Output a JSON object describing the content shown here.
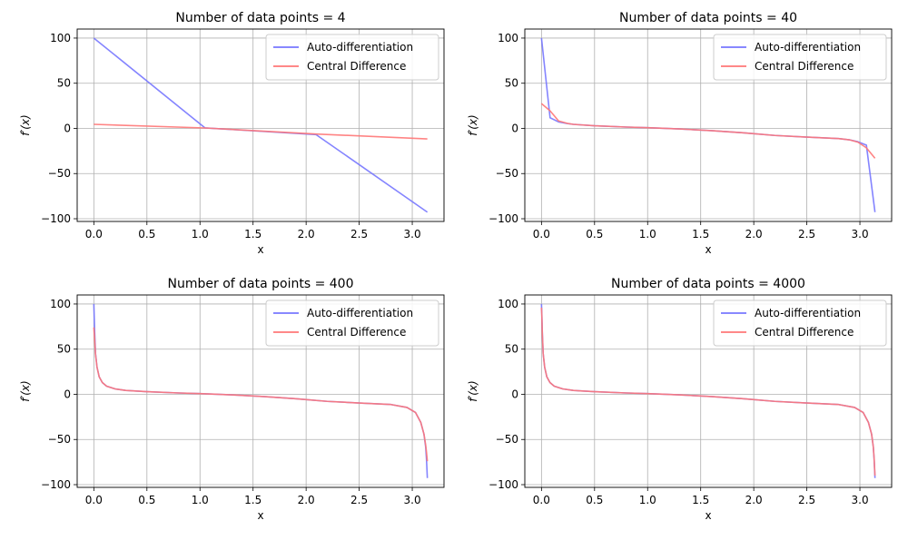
{
  "figure": {
    "layout": "2x2 grid"
  },
  "colors": {
    "auto": "#7777ff",
    "central": "#ff7777",
    "overlap": "#bb3f8f",
    "grid": "#b0b0b0"
  },
  "chart_data": [
    {
      "type": "line",
      "title": "Number of data points = 4",
      "xlabel": "x",
      "ylabel": "f′(x)",
      "xlim": [
        -0.157,
        3.299
      ],
      "ylim": [
        -103,
        110
      ],
      "xticks": [
        0.0,
        0.5,
        1.0,
        1.5,
        2.0,
        2.5,
        3.0
      ],
      "xtick_labels": [
        "0.0",
        "0.5",
        "1.0",
        "1.5",
        "2.0",
        "2.5",
        "3.0"
      ],
      "yticks": [
        -100,
        -50,
        0,
        50,
        100
      ],
      "ytick_labels": [
        "−100",
        "−50",
        "0",
        "50",
        "100"
      ],
      "grid": true,
      "legend": "top-right",
      "series": [
        {
          "name": "Auto-differentiation",
          "color": "#7777ff",
          "x": [
            0.0,
            1.047,
            2.094,
            3.142
          ],
          "y": [
            100.0,
            0.577,
            -6.9,
            -92.7
          ]
        },
        {
          "name": "Central Difference",
          "color": "#ff7777",
          "x": [
            0.0,
            1.047,
            2.094,
            3.142
          ],
          "y": [
            4.5,
            0.5,
            -6.2,
            -11.6
          ]
        }
      ]
    },
    {
      "type": "line",
      "title": "Number of data points = 40",
      "xlabel": "x",
      "ylabel": "f′(x)",
      "xlim": [
        -0.157,
        3.299
      ],
      "ylim": [
        -103,
        110
      ],
      "xticks": [
        0.0,
        0.5,
        1.0,
        1.5,
        2.0,
        2.5,
        3.0
      ],
      "xtick_labels": [
        "0.0",
        "0.5",
        "1.0",
        "1.5",
        "2.0",
        "2.5",
        "3.0"
      ],
      "yticks": [
        -100,
        -50,
        0,
        50,
        100
      ],
      "ytick_labels": [
        "−100",
        "−50",
        "0",
        "50",
        "100"
      ],
      "grid": true,
      "legend": "top-right",
      "series": [
        {
          "name": "Auto-differentiation",
          "color": "#7777ff",
          "x": [
            0.0,
            0.081,
            0.161,
            0.242,
            0.3,
            0.5,
            0.8,
            1.0,
            1.3,
            1.6,
            1.9,
            2.2,
            2.5,
            2.8,
            2.9,
            2.981,
            3.061,
            3.142
          ],
          "y": [
            100.0,
            11.8,
            7.2,
            5.4,
            4.5,
            2.9,
            1.5,
            0.8,
            -0.6,
            -2.5,
            -4.9,
            -7.8,
            -9.6,
            -11.3,
            -12.6,
            -14.8,
            -18.5,
            -92.7
          ]
        },
        {
          "name": "Central Difference",
          "color": "#ff7777",
          "x": [
            0.0,
            0.081,
            0.161,
            0.242,
            0.3,
            0.5,
            0.8,
            1.0,
            1.3,
            1.6,
            1.9,
            2.2,
            2.5,
            2.8,
            2.9,
            2.981,
            3.061,
            3.142
          ],
          "y": [
            27.5,
            19.5,
            8.3,
            5.6,
            4.5,
            2.9,
            1.5,
            0.8,
            -0.6,
            -2.5,
            -4.9,
            -7.8,
            -9.6,
            -11.3,
            -12.6,
            -15.2,
            -21.5,
            -33.0
          ]
        }
      ]
    },
    {
      "type": "line",
      "title": "Number of data points = 400",
      "xlabel": "x",
      "ylabel": "f′(x)",
      "xlim": [
        -0.157,
        3.299
      ],
      "ylim": [
        -103,
        110
      ],
      "xticks": [
        0.0,
        0.5,
        1.0,
        1.5,
        2.0,
        2.5,
        3.0
      ],
      "xtick_labels": [
        "0.0",
        "0.5",
        "1.0",
        "1.5",
        "2.0",
        "2.5",
        "3.0"
      ],
      "yticks": [
        -100,
        -50,
        0,
        50,
        100
      ],
      "ytick_labels": [
        "−100",
        "−50",
        "0",
        "50",
        "100"
      ],
      "grid": true,
      "legend": "top-right",
      "series": [
        {
          "name": "Auto-differentiation",
          "color": "#7777ff",
          "x": [
            0.0,
            0.008,
            0.016,
            0.03,
            0.05,
            0.08,
            0.12,
            0.2,
            0.3,
            0.5,
            0.8,
            1.0,
            1.3,
            1.6,
            1.9,
            2.2,
            2.5,
            2.8,
            2.95,
            3.03,
            3.08,
            3.11,
            3.126,
            3.134,
            3.142
          ],
          "y": [
            100.0,
            68.0,
            45.0,
            30.0,
            19.5,
            13.0,
            9.0,
            6.0,
            4.3,
            2.9,
            1.5,
            0.8,
            -0.6,
            -2.5,
            -4.9,
            -7.8,
            -9.6,
            -11.3,
            -14.5,
            -20.0,
            -31.0,
            -44.0,
            -58.0,
            -72.0,
            -92.7
          ]
        },
        {
          "name": "Central Difference",
          "color": "#ff7777",
          "x": [
            0.0,
            0.008,
            0.016,
            0.03,
            0.05,
            0.08,
            0.12,
            0.2,
            0.3,
            0.5,
            0.8,
            1.0,
            1.3,
            1.6,
            1.9,
            2.2,
            2.5,
            2.8,
            2.95,
            3.03,
            3.08,
            3.11,
            3.126,
            3.134,
            3.142
          ],
          "y": [
            74.0,
            60.0,
            44.0,
            30.0,
            19.5,
            13.0,
            9.0,
            6.0,
            4.3,
            2.9,
            1.5,
            0.8,
            -0.6,
            -2.5,
            -4.9,
            -7.8,
            -9.6,
            -11.3,
            -14.5,
            -20.0,
            -31.0,
            -44.0,
            -56.0,
            -64.0,
            -74.0
          ]
        }
      ]
    },
    {
      "type": "line",
      "title": "Number of data points = 4000",
      "xlabel": "x",
      "ylabel": "f′(x)",
      "xlim": [
        -0.157,
        3.299
      ],
      "ylim": [
        -103,
        110
      ],
      "xticks": [
        0.0,
        0.5,
        1.0,
        1.5,
        2.0,
        2.5,
        3.0
      ],
      "xtick_labels": [
        "0.0",
        "0.5",
        "1.0",
        "1.5",
        "2.0",
        "2.5",
        "3.0"
      ],
      "yticks": [
        -100,
        -50,
        0,
        50,
        100
      ],
      "ytick_labels": [
        "−100",
        "−50",
        "0",
        "50",
        "100"
      ],
      "grid": true,
      "legend": "top-right",
      "series": [
        {
          "name": "Auto-differentiation",
          "color": "#7777ff",
          "x": [
            0.0,
            0.003,
            0.008,
            0.016,
            0.03,
            0.05,
            0.08,
            0.12,
            0.2,
            0.3,
            0.5,
            0.8,
            1.0,
            1.3,
            1.6,
            1.9,
            2.2,
            2.5,
            2.8,
            2.95,
            3.03,
            3.08,
            3.11,
            3.126,
            3.134,
            3.139,
            3.142
          ],
          "y": [
            100.0,
            90.0,
            68.0,
            45.0,
            30.0,
            19.5,
            13.0,
            9.0,
            6.0,
            4.3,
            2.9,
            1.5,
            0.8,
            -0.6,
            -2.5,
            -4.9,
            -7.8,
            -9.6,
            -11.3,
            -14.5,
            -20.0,
            -31.0,
            -44.0,
            -58.0,
            -72.0,
            -85.0,
            -92.7
          ]
        },
        {
          "name": "Central Difference",
          "color": "#ff7777",
          "x": [
            0.0,
            0.003,
            0.008,
            0.016,
            0.03,
            0.05,
            0.08,
            0.12,
            0.2,
            0.3,
            0.5,
            0.8,
            1.0,
            1.3,
            1.6,
            1.9,
            2.2,
            2.5,
            2.8,
            2.95,
            3.03,
            3.08,
            3.11,
            3.126,
            3.134,
            3.139,
            3.142
          ],
          "y": [
            96.0,
            88.0,
            67.0,
            45.0,
            30.0,
            19.5,
            13.0,
            9.0,
            6.0,
            4.3,
            2.9,
            1.5,
            0.8,
            -0.6,
            -2.5,
            -4.9,
            -7.8,
            -9.6,
            -11.3,
            -14.5,
            -20.0,
            -31.0,
            -44.0,
            -58.0,
            -71.0,
            -83.0,
            -90.0
          ]
        }
      ]
    }
  ]
}
